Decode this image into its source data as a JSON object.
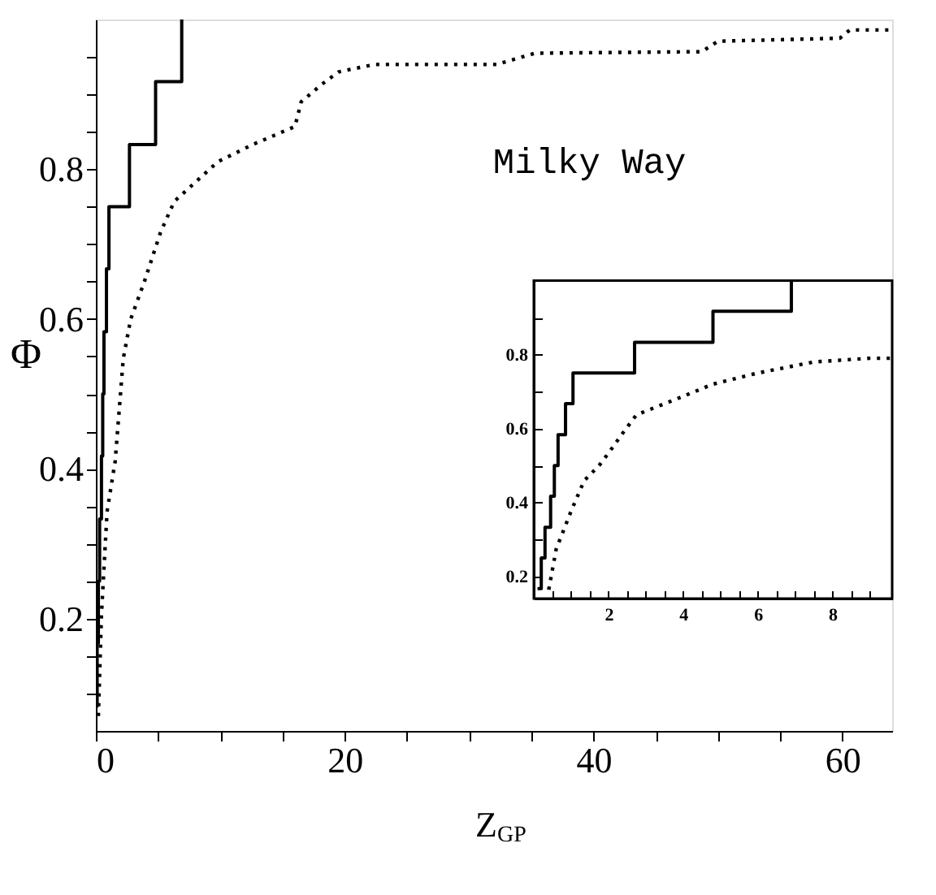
{
  "chart_data": [
    {
      "type": "line",
      "xlabel": "Z$_{GP}$",
      "ylabel": "Φ",
      "annotations": [
        "Milky Way"
      ],
      "grid": false,
      "xlim": [
        0,
        64
      ],
      "ylim": [
        0.05,
        1.0
      ],
      "xticks": [
        0,
        {
          "value": 5,
          "label": null
        },
        {
          "value": 10,
          "label": null
        },
        {
          "value": 15,
          "label": null
        },
        20,
        {
          "value": 25,
          "label": null
        },
        {
          "value": 30,
          "label": null
        },
        {
          "value": 35,
          "label": null
        },
        40,
        {
          "value": 45,
          "label": null
        },
        {
          "value": 50,
          "label": null
        },
        {
          "value": 55,
          "label": null
        },
        60
      ],
      "yticks": [
        {
          "value": 0.1,
          "label": null
        },
        {
          "value": 0.15,
          "label": null
        },
        0.2,
        {
          "value": 0.25,
          "label": null
        },
        {
          "value": 0.3,
          "label": null
        },
        {
          "value": 0.35,
          "label": null
        },
        0.4,
        {
          "value": 0.45,
          "label": null
        },
        {
          "value": 0.5,
          "label": null
        },
        {
          "value": 0.55,
          "label": null
        },
        0.6,
        {
          "value": 0.65,
          "label": null
        },
        {
          "value": 0.7,
          "label": null
        },
        {
          "value": 0.75,
          "label": null
        },
        0.8,
        {
          "value": 0.85,
          "label": null
        },
        {
          "value": 0.9,
          "label": null
        },
        {
          "value": 0.95,
          "label": null
        }
      ],
      "series": [
        {
          "type": "step",
          "color": "#000000",
          "line_style": "solid",
          "x": [
            0.05,
            0.1,
            0.2,
            0.3,
            0.45,
            0.55,
            0.65,
            0.85,
            1.05,
            2.7,
            4.8,
            6.9
          ],
          "values": [
            0.083,
            0.167,
            0.25,
            0.333,
            0.417,
            0.5,
            0.583,
            0.667,
            0.75,
            0.833,
            0.917,
            1.0
          ]
        },
        {
          "type": "line",
          "color": "#000000",
          "line_style": "dotted",
          "x": [
            0.2,
            0.45,
            0.9,
            1.55,
            2.2,
            2.8,
            3.9,
            5.2,
            6.3,
            9.8,
            12.6,
            16.0,
            16.5,
            18.2,
            19.5,
            22.4,
            32.2,
            35.3,
            48.7,
            50,
            59.8,
            60.6,
            64
          ],
          "values": [
            0.07,
            0.206,
            0.343,
            0.41,
            0.547,
            0.6,
            0.65,
            0.716,
            0.757,
            0.81,
            0.833,
            0.857,
            0.89,
            0.914,
            0.93,
            0.94,
            0.94,
            0.955,
            0.957,
            0.971,
            0.975,
            0.986,
            0.986
          ]
        }
      ]
    },
    {
      "type": "line",
      "grid": false,
      "xlim": [
        0,
        9.6
      ],
      "ylim": [
        0.14,
        1.0
      ],
      "xticks": [
        {
          "value": 0.5,
          "label": null
        },
        {
          "value": 1,
          "label": null
        },
        {
          "value": 1.5,
          "label": null
        },
        2,
        {
          "value": 2.5,
          "label": null
        },
        {
          "value": 3,
          "label": null
        },
        {
          "value": 3.5,
          "label": null
        },
        4,
        {
          "value": 4.5,
          "label": null
        },
        {
          "value": 5,
          "label": null
        },
        {
          "value": 5.5,
          "label": null
        },
        6,
        {
          "value": 6.5,
          "label": null
        },
        {
          "value": 7,
          "label": null
        },
        {
          "value": 7.5,
          "label": null
        },
        8,
        {
          "value": 8.5,
          "label": null
        },
        {
          "value": 9,
          "label": null
        }
      ],
      "yticks": [
        0.2,
        {
          "value": 0.3,
          "label": null
        },
        0.4,
        {
          "value": 0.5,
          "label": null
        },
        0.6,
        {
          "value": 0.7,
          "label": null
        },
        0.8,
        {
          "value": 0.9,
          "label": null
        }
      ],
      "series": [
        {
          "type": "step",
          "color": "#000000",
          "line_style": "solid",
          "x": [
            0.1,
            0.2,
            0.3,
            0.45,
            0.55,
            0.65,
            0.85,
            1.05,
            2.7,
            4.8,
            6.9
          ],
          "values": [
            0.167,
            0.25,
            0.333,
            0.417,
            0.5,
            0.583,
            0.667,
            0.75,
            0.833,
            0.917,
            1.0
          ]
        },
        {
          "type": "line",
          "color": "#000000",
          "line_style": "dotted",
          "x": [
            0.4,
            0.6,
            1.0,
            1.35,
            1.75,
            2.05,
            2.35,
            2.75,
            3.8,
            4.8,
            6.0,
            7.5,
            9.0,
            9.6
          ],
          "values": [
            0.164,
            0.274,
            0.377,
            0.459,
            0.5,
            0.54,
            0.583,
            0.637,
            0.679,
            0.72,
            0.75,
            0.78,
            0.79,
            0.79
          ]
        }
      ]
    }
  ]
}
